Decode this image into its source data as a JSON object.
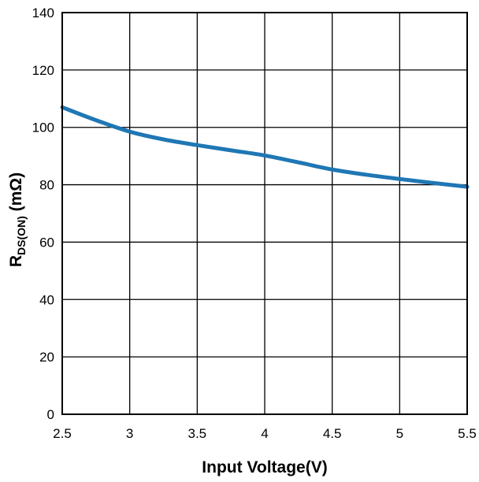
{
  "chart_data": {
    "type": "line",
    "title": "",
    "xlabel": "Input Voltage(V)",
    "ylabel": {
      "main": "R",
      "subscript": "DS(ON)",
      "unit": " (mΩ)"
    },
    "xlim": [
      2.5,
      5.5
    ],
    "ylim": [
      0,
      140
    ],
    "x_ticks": [
      2.5,
      3,
      3.5,
      4,
      4.5,
      5,
      5.5
    ],
    "x_tick_labels": [
      "2.5",
      "3",
      "3.5",
      "4",
      "4.5",
      "5",
      "5.5"
    ],
    "y_ticks": [
      0,
      20,
      40,
      60,
      80,
      100,
      120,
      140
    ],
    "y_tick_labels": [
      "0",
      "20",
      "40",
      "60",
      "80",
      "100",
      "120",
      "140"
    ],
    "grid": true,
    "legend": "none",
    "series": [
      {
        "color": "#1f77b4",
        "x": [
          2.5,
          2.75,
          3.0,
          3.25,
          3.5,
          3.75,
          4.0,
          4.25,
          4.5,
          4.75,
          5.0,
          5.25,
          5.5
        ],
        "y": [
          107.0,
          102.5,
          98.5,
          95.8,
          93.8,
          92.0,
          90.2,
          87.8,
          85.3,
          83.5,
          82.0,
          80.6,
          79.3
        ]
      }
    ]
  }
}
